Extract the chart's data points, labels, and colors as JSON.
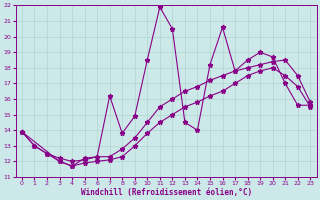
{
  "background_color": "#cde8e8",
  "grid_color": "#b0d8cc",
  "line_color": "#880088",
  "xlabel": "Windchill (Refroidissement éolien,°C)",
  "xlim": [
    -0.5,
    23.5
  ],
  "ylim": [
    11,
    22
  ],
  "xticks": [
    0,
    1,
    2,
    3,
    4,
    5,
    6,
    7,
    8,
    9,
    10,
    11,
    12,
    13,
    14,
    15,
    16,
    17,
    18,
    19,
    20,
    21,
    22,
    23
  ],
  "yticks": [
    11,
    12,
    13,
    14,
    15,
    16,
    17,
    18,
    19,
    20,
    21,
    22
  ],
  "series1": [
    [
      0,
      13.9
    ],
    [
      1,
      13.0
    ],
    [
      2,
      12.5
    ],
    [
      3,
      12.0
    ],
    [
      4,
      11.7
    ],
    [
      5,
      12.2
    ],
    [
      6,
      12.3
    ],
    [
      7,
      16.2
    ],
    [
      8,
      13.8
    ],
    [
      9,
      14.9
    ],
    [
      10,
      18.5
    ],
    [
      11,
      21.9
    ],
    [
      12,
      20.5
    ],
    [
      13,
      14.5
    ],
    [
      14,
      14.0
    ],
    [
      15,
      18.2
    ],
    [
      16,
      20.6
    ],
    [
      17,
      17.8
    ],
    [
      18,
      18.5
    ],
    [
      19,
      19.0
    ],
    [
      20,
      18.7
    ],
    [
      21,
      17.0
    ],
    [
      22,
      15.6
    ],
    [
      23,
      15.6
    ]
  ],
  "series2": [
    [
      0,
      13.9
    ],
    [
      1,
      13.0
    ],
    [
      2,
      12.5
    ],
    [
      3,
      12.2
    ],
    [
      4,
      12.0
    ],
    [
      5,
      12.1
    ],
    [
      6,
      12.3
    ],
    [
      7,
      12.3
    ],
    [
      8,
      12.8
    ],
    [
      9,
      13.5
    ],
    [
      10,
      14.5
    ],
    [
      11,
      15.5
    ],
    [
      12,
      16.0
    ],
    [
      13,
      16.5
    ],
    [
      14,
      16.8
    ],
    [
      15,
      17.2
    ],
    [
      16,
      17.5
    ],
    [
      17,
      17.8
    ],
    [
      18,
      18.0
    ],
    [
      19,
      18.2
    ],
    [
      20,
      18.4
    ],
    [
      21,
      18.5
    ],
    [
      22,
      17.5
    ],
    [
      23,
      15.8
    ]
  ],
  "series3": [
    [
      0,
      13.9
    ],
    [
      3,
      12.0
    ],
    [
      4,
      11.7
    ],
    [
      5,
      11.9
    ],
    [
      6,
      12.0
    ],
    [
      7,
      12.1
    ],
    [
      8,
      12.3
    ],
    [
      9,
      13.0
    ],
    [
      10,
      13.8
    ],
    [
      11,
      14.5
    ],
    [
      12,
      15.0
    ],
    [
      13,
      15.5
    ],
    [
      14,
      15.8
    ],
    [
      15,
      16.2
    ],
    [
      16,
      16.5
    ],
    [
      17,
      17.0
    ],
    [
      18,
      17.5
    ],
    [
      19,
      17.8
    ],
    [
      20,
      18.0
    ],
    [
      21,
      17.5
    ],
    [
      22,
      16.8
    ],
    [
      23,
      15.5
    ]
  ]
}
